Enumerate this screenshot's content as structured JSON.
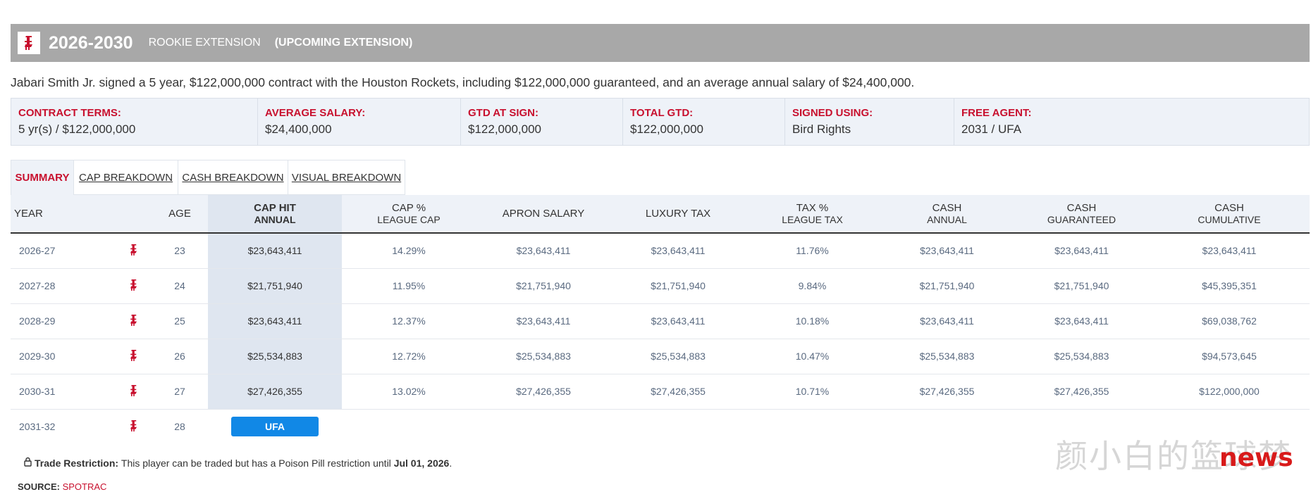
{
  "header": {
    "years": "2026-2030",
    "contract_type": "ROOKIE EXTENSION",
    "status": "(UPCOMING EXTENSION)",
    "logo_icon": "rockets-logo-icon"
  },
  "description": "Jabari Smith Jr. signed a 5 year, $122,000,000 contract with the Houston Rockets, including $122,000,000 guaranteed, and an average annual salary of $24,400,000.",
  "terms": [
    {
      "label": "CONTRACT TERMS:",
      "value": "5 yr(s) / $122,000,000"
    },
    {
      "label": "AVERAGE SALARY:",
      "value": "$24,400,000"
    },
    {
      "label": "GTD AT SIGN:",
      "value": "$122,000,000"
    },
    {
      "label": "TOTAL GTD:",
      "value": "$122,000,000"
    },
    {
      "label": "SIGNED USING:",
      "value": "Bird Rights"
    },
    {
      "label": "FREE AGENT:",
      "value": "2031 / UFA"
    }
  ],
  "tabs": [
    {
      "label": "SUMMARY",
      "active": true
    },
    {
      "label": "CAP BREAKDOWN"
    },
    {
      "label": "CASH BREAKDOWN"
    },
    {
      "label": "VISUAL BREAKDOWN"
    }
  ],
  "table": {
    "headers": {
      "year": "YEAR",
      "age": "AGE",
      "cap_hit": [
        "CAP HIT",
        "ANNUAL"
      ],
      "cap_pct": [
        "CAP %",
        "LEAGUE CAP"
      ],
      "apron": "APRON SALARY",
      "luxury": "LUXURY TAX",
      "tax_pct": [
        "TAX %",
        "LEAGUE TAX"
      ],
      "cash_annual": [
        "CASH",
        "ANNUAL"
      ],
      "cash_gtd": [
        "CASH",
        "GUARANTEED"
      ],
      "cash_cum": [
        "CASH",
        "CUMULATIVE"
      ]
    },
    "rows": [
      {
        "year": "2026-27",
        "age": "23",
        "cap_hit": "$23,643,411",
        "cap_pct": "14.29%",
        "apron": "$23,643,411",
        "luxury": "$23,643,411",
        "tax_pct": "11.76%",
        "cash_annual": "$23,643,411",
        "cash_gtd": "$23,643,411",
        "cash_cum": "$23,643,411"
      },
      {
        "year": "2027-28",
        "age": "24",
        "cap_hit": "$21,751,940",
        "cap_pct": "11.95%",
        "apron": "$21,751,940",
        "luxury": "$21,751,940",
        "tax_pct": "9.84%",
        "cash_annual": "$21,751,940",
        "cash_gtd": "$21,751,940",
        "cash_cum": "$45,395,351"
      },
      {
        "year": "2028-29",
        "age": "25",
        "cap_hit": "$23,643,411",
        "cap_pct": "12.37%",
        "apron": "$23,643,411",
        "luxury": "$23,643,411",
        "tax_pct": "10.18%",
        "cash_annual": "$23,643,411",
        "cash_gtd": "$23,643,411",
        "cash_cum": "$69,038,762"
      },
      {
        "year": "2029-30",
        "age": "26",
        "cap_hit": "$25,534,883",
        "cap_pct": "12.72%",
        "apron": "$25,534,883",
        "luxury": "$25,534,883",
        "tax_pct": "10.47%",
        "cash_annual": "$25,534,883",
        "cash_gtd": "$25,534,883",
        "cash_cum": "$94,573,645"
      },
      {
        "year": "2030-31",
        "age": "27",
        "cap_hit": "$27,426,355",
        "cap_pct": "13.02%",
        "apron": "$27,426,355",
        "luxury": "$27,426,355",
        "tax_pct": "10.71%",
        "cash_annual": "$27,426,355",
        "cash_gtd": "$27,426,355",
        "cash_cum": "$122,000,000"
      }
    ],
    "ufa_row": {
      "year": "2031-32",
      "age": "28",
      "badge": "UFA"
    }
  },
  "trade_restriction": {
    "label": "Trade Restriction:",
    "text": "This player can be traded but has a Poison Pill restriction until",
    "date": "Jul 01, 2026",
    "end": "."
  },
  "source": {
    "label": "SOURCE:",
    "value": "SPOTRAC"
  },
  "watermark": {
    "text": "颜小白的篮球梦",
    "news": "news"
  },
  "colors": {
    "accent": "#c8102e",
    "header_bg": "#a8a8a8",
    "ufa_badge": "#1188e6"
  }
}
